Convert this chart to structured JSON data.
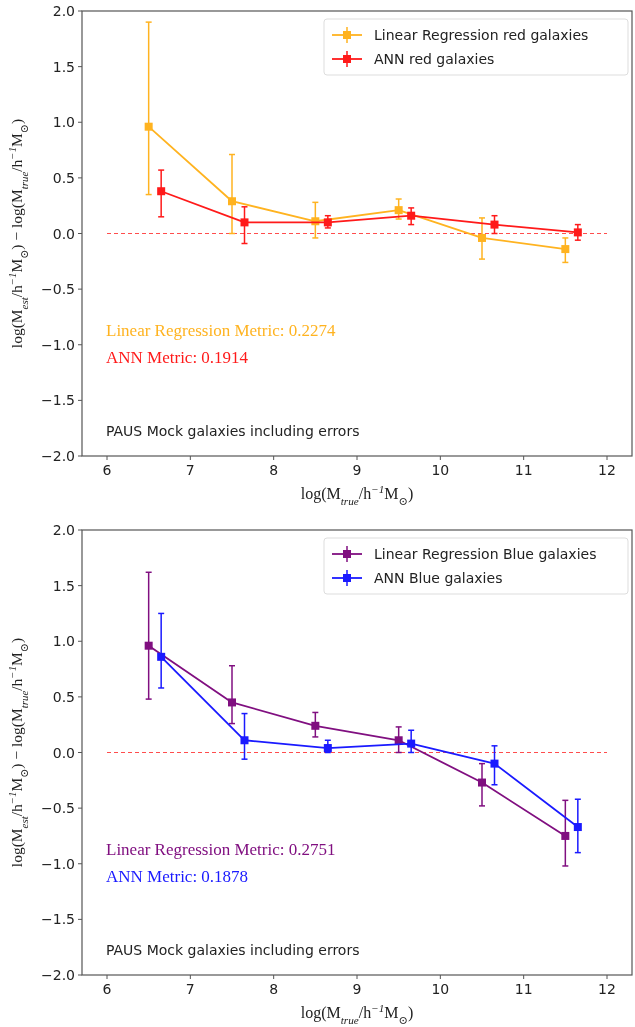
{
  "chart_data": [
    {
      "type": "line",
      "xlabel": "log(M$_{true}$/h$^{−1}$M$_{⊙}$)",
      "ylabel": "log(M$_{est}$/h$^{−1}$M$_{⊙}$) − log(M$_{true}$/h$^{−1}$M$_{⊙}$)",
      "xlim": [
        5.7,
        12.3
      ],
      "ylim": [
        -2.0,
        2.0
      ],
      "xticks": [
        6,
        7,
        8,
        9,
        10,
        11,
        12
      ],
      "yticks": [
        {
          "value": -2,
          "label": "−2.0"
        },
        {
          "value": -1.5,
          "label": "−1.5"
        },
        {
          "value": -1,
          "label": "−1.0"
        },
        {
          "value": -0.5,
          "label": "−0.5"
        },
        {
          "value": 0,
          "label": "0.0"
        },
        {
          "value": 0.5,
          "label": "0.5"
        },
        {
          "value": 1,
          "label": "1.0"
        },
        {
          "value": 1.5,
          "label": "1.5"
        },
        {
          "value": 2,
          "label": "2.0"
        }
      ],
      "legend": "top right",
      "marker": "square",
      "grid": false,
      "ref_lines": [
        {
          "axis": "y",
          "value": 0,
          "color": "#ff4d4d",
          "line_style": "dashed"
        }
      ],
      "annotations": [
        "Linear Regression Metric: 0.2274",
        "ANN Metric: 0.1914",
        "PAUS Mock galaxies including errors"
      ],
      "series": [
        {
          "name": "Linear Regression red galaxies",
          "color": "#ffb320",
          "x": [
            6.5,
            7.5,
            8.5,
            9.5,
            10.5,
            11.5
          ],
          "values": [
            0.96,
            0.29,
            0.11,
            0.21,
            -0.04,
            -0.14
          ],
          "errors": [
            [
              0.35,
              1.9
            ],
            [
              0.0,
              0.71
            ],
            [
              -0.04,
              0.28
            ],
            [
              0.13,
              0.31
            ],
            [
              -0.23,
              0.14
            ],
            [
              -0.26,
              -0.04
            ]
          ]
        },
        {
          "name": "ANN red galaxies",
          "color": "#ff1a1a",
          "x": [
            6.65,
            7.65,
            8.65,
            9.65,
            10.65,
            11.65
          ],
          "values": [
            0.38,
            0.1,
            0.1,
            0.16,
            0.08,
            0.01
          ],
          "errors": [
            [
              0.15,
              0.57
            ],
            [
              -0.09,
              0.24
            ],
            [
              0.05,
              0.16
            ],
            [
              0.08,
              0.23
            ],
            [
              0.0,
              0.16
            ],
            [
              -0.06,
              0.08
            ]
          ]
        }
      ]
    },
    {
      "type": "line",
      "xlabel": "log(M$_{true}$/h$^{−1}$M$_{⊙}$)",
      "ylabel": "log(M$_{est}$/h$^{−1}$M$_{⊙}$) − log(M$_{true}$/h$^{−1}$M$_{⊙}$)",
      "xlim": [
        5.7,
        12.3
      ],
      "ylim": [
        -2.0,
        2.0
      ],
      "xticks": [
        6,
        7,
        8,
        9,
        10,
        11,
        12
      ],
      "yticks": [
        {
          "value": -2,
          "label": "−2.0"
        },
        {
          "value": -1.5,
          "label": "−1.5"
        },
        {
          "value": -1,
          "label": "−1.0"
        },
        {
          "value": -0.5,
          "label": "−0.5"
        },
        {
          "value": 0,
          "label": "0.0"
        },
        {
          "value": 0.5,
          "label": "0.5"
        },
        {
          "value": 1,
          "label": "1.0"
        },
        {
          "value": 1.5,
          "label": "1.5"
        },
        {
          "value": 2,
          "label": "2.0"
        }
      ],
      "legend": "top right",
      "marker": "square",
      "grid": false,
      "ref_lines": [
        {
          "axis": "y",
          "value": 0,
          "color": "#ff4d4d",
          "line_style": "dashed"
        }
      ],
      "annotations": [
        "Linear Regression Metric: 0.2751",
        "ANN Metric: 0.1878",
        "PAUS Mock galaxies including errors"
      ],
      "series": [
        {
          "name": "Linear Regression Blue galaxies",
          "color": "#800f80",
          "x": [
            6.5,
            7.5,
            8.5,
            9.5,
            10.5,
            11.5
          ],
          "values": [
            0.96,
            0.45,
            0.24,
            0.11,
            -0.27,
            -0.75
          ],
          "errors": [
            [
              0.48,
              1.62
            ],
            [
              0.26,
              0.78
            ],
            [
              0.14,
              0.36
            ],
            [
              0.0,
              0.23
            ],
            [
              -0.48,
              -0.1
            ],
            [
              -1.02,
              -0.43
            ]
          ]
        },
        {
          "name": "ANN Blue galaxies",
          "color": "#1a1aff",
          "x": [
            6.65,
            7.65,
            8.65,
            9.65,
            10.65,
            11.65
          ],
          "values": [
            0.86,
            0.11,
            0.04,
            0.08,
            -0.1,
            -0.67
          ],
          "errors": [
            [
              0.58,
              1.25
            ],
            [
              -0.06,
              0.35
            ],
            [
              0.0,
              0.11
            ],
            [
              0.0,
              0.2
            ],
            [
              -0.29,
              0.06
            ],
            [
              -0.9,
              -0.42
            ]
          ]
        }
      ]
    }
  ]
}
